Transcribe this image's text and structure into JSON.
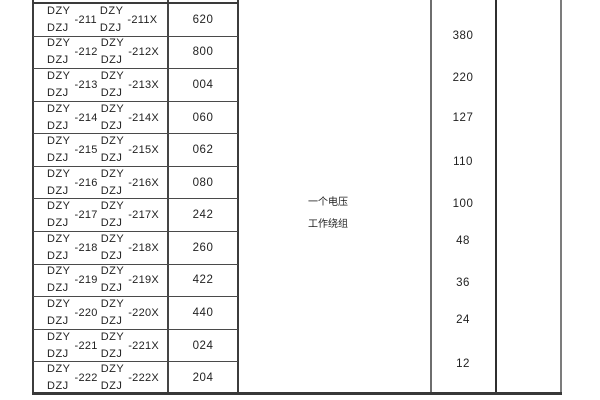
{
  "table": {
    "series": {
      "top": "DZY",
      "bottom": "DZJ"
    },
    "rows": [
      {
        "model": "-211",
        "model_x": "-211X",
        "code": "620"
      },
      {
        "model": "-212",
        "model_x": "-212X",
        "code": "800"
      },
      {
        "model": "-213",
        "model_x": "-213X",
        "code": "004"
      },
      {
        "model": "-214",
        "model_x": "-214X",
        "code": "060"
      },
      {
        "model": "-215",
        "model_x": "-215X",
        "code": "062"
      },
      {
        "model": "-216",
        "model_x": "-216X",
        "code": "080"
      },
      {
        "model": "-217",
        "model_x": "-217X",
        "code": "242"
      },
      {
        "model": "-218",
        "model_x": "-218X",
        "code": "260"
      },
      {
        "model": "-219",
        "model_x": "-219X",
        "code": "422"
      },
      {
        "model": "-220",
        "model_x": "-220X",
        "code": "440"
      },
      {
        "model": "-221",
        "model_x": "-221X",
        "code": "024"
      },
      {
        "model": "-222",
        "model_x": "-222X",
        "code": "204"
      }
    ],
    "winding_label": {
      "line1": "一个电压",
      "line2": "工作绕组"
    },
    "voltages": [
      "380",
      "220",
      "127",
      "110",
      "100",
      "48",
      "36",
      "24",
      "12"
    ],
    "border_colors": {
      "dark": "#3c3c3c",
      "medium": "#4a4a4a",
      "light": "#7c7c7c"
    }
  }
}
